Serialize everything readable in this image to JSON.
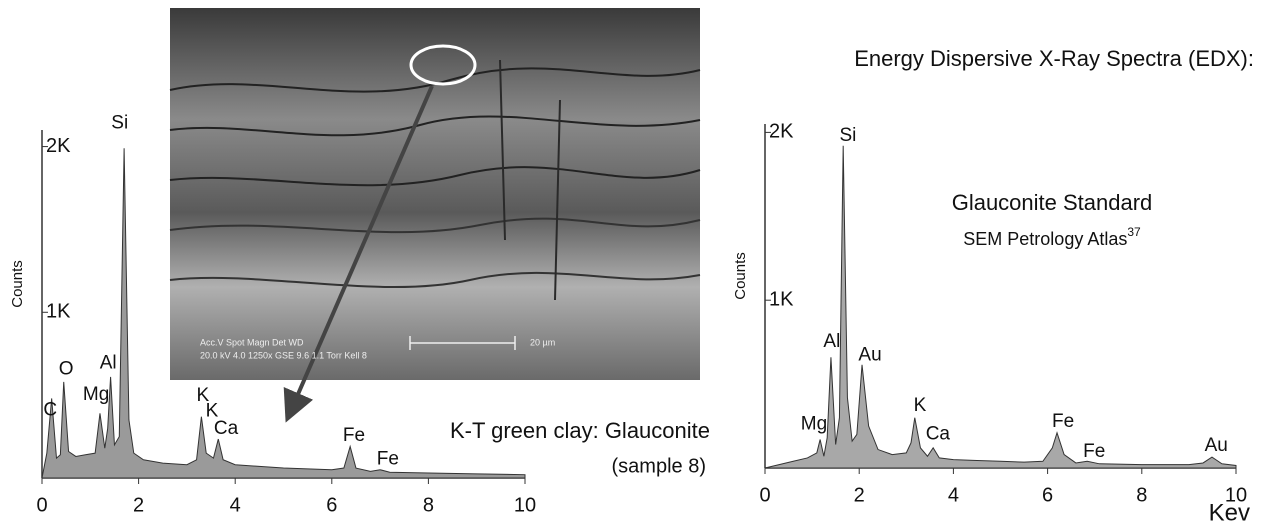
{
  "chart_data": [
    {
      "type": "area",
      "subtitle": "K-T green clay: Glauconite",
      "note": "(sample 8)",
      "ylabel": "Counts",
      "color": "#9a9a9a",
      "x": [
        0,
        0.1,
        0.2,
        0.3,
        0.38,
        0.45,
        0.55,
        0.7,
        0.9,
        1.1,
        1.2,
        1.3,
        1.36,
        1.42,
        1.5,
        1.6,
        1.7,
        1.8,
        1.9,
        2.1,
        2.5,
        3.0,
        3.2,
        3.3,
        3.4,
        3.55,
        3.65,
        3.75,
        4.0,
        4.5,
        5.0,
        5.5,
        6.0,
        6.25,
        6.38,
        6.5,
        6.8,
        7.0,
        7.2,
        8.0,
        9.0,
        10.0
      ],
      "values": [
        0,
        150,
        480,
        120,
        140,
        580,
        160,
        130,
        140,
        150,
        390,
        180,
        300,
        610,
        200,
        250,
        1990,
        350,
        150,
        110,
        90,
        80,
        110,
        370,
        150,
        120,
        235,
        110,
        80,
        70,
        60,
        55,
        50,
        60,
        190,
        60,
        40,
        50,
        35,
        30,
        25,
        20
      ],
      "peaks": [
        {
          "label": "C",
          "x": 0.17,
          "y": 408
        },
        {
          "label": "O",
          "x": 0.5,
          "y": 655
        },
        {
          "label": "Mg",
          "x": 1.12,
          "y": 500
        },
        {
          "label": "Al",
          "x": 1.37,
          "y": 690
        },
        {
          "label": "Si",
          "x": 1.61,
          "y": 2140
        },
        {
          "label": "K",
          "x": 3.33,
          "y": 495
        },
        {
          "label": "K",
          "x": 3.52,
          "y": 400
        },
        {
          "label": "Ca",
          "x": 3.81,
          "y": 296
        },
        {
          "label": "Fe",
          "x": 6.46,
          "y": 253
        },
        {
          "label": "Fe",
          "x": 7.16,
          "y": 111
        }
      ],
      "xlim": [
        0,
        10
      ],
      "xticks": [
        0,
        2,
        4,
        6,
        8,
        10
      ],
      "ylim": [
        0,
        2100
      ],
      "yticks": [
        {
          "value": 1000,
          "label": "1K"
        },
        {
          "value": 2000,
          "label": "2K"
        }
      ]
    },
    {
      "type": "area",
      "title": "Energy Dispersive X-Ray Spectra (EDX):",
      "subtitle": "Glauconite Standard",
      "source": "SEM Petrology Atlas",
      "source_ref": "37",
      "xlabel": "Kev",
      "ylabel": "Counts",
      "color": "#a8a8a8",
      "x": [
        0,
        0.3,
        0.6,
        0.9,
        1.1,
        1.17,
        1.25,
        1.32,
        1.4,
        1.5,
        1.58,
        1.66,
        1.75,
        1.85,
        1.95,
        2.06,
        2.2,
        2.4,
        2.7,
        3.0,
        3.1,
        3.18,
        3.3,
        3.45,
        3.57,
        3.7,
        4.0,
        4.5,
        5.0,
        5.5,
        5.9,
        6.1,
        6.2,
        6.35,
        6.6,
        6.84,
        7.1,
        8.0,
        9.0,
        9.3,
        9.49,
        9.7,
        10.0
      ],
      "values": [
        0,
        20,
        40,
        60,
        90,
        170,
        70,
        180,
        660,
        140,
        300,
        1920,
        420,
        160,
        200,
        615,
        250,
        110,
        80,
        90,
        150,
        300,
        120,
        70,
        120,
        60,
        50,
        45,
        40,
        35,
        40,
        120,
        210,
        80,
        30,
        40,
        25,
        20,
        20,
        30,
        65,
        25,
        15
      ],
      "peaks": [
        {
          "label": "Mg",
          "x": 1.04,
          "y": 260
        },
        {
          "label": "Al",
          "x": 1.42,
          "y": 750
        },
        {
          "label": "Si",
          "x": 1.76,
          "y": 1980
        },
        {
          "label": "Au",
          "x": 2.23,
          "y": 670
        },
        {
          "label": "K",
          "x": 3.29,
          "y": 370
        },
        {
          "label": "Ca",
          "x": 3.67,
          "y": 200
        },
        {
          "label": "Fe",
          "x": 6.33,
          "y": 275
        },
        {
          "label": "Fe",
          "x": 6.99,
          "y": 96
        },
        {
          "label": "Au",
          "x": 9.58,
          "y": 130
        }
      ],
      "xlim": [
        0,
        10
      ],
      "xticks": [
        0,
        2,
        4,
        6,
        8,
        10
      ],
      "ylim": [
        0,
        2050
      ],
      "yticks": [
        {
          "value": 1000,
          "label": "1K"
        },
        {
          "value": 2000,
          "label": "2K"
        }
      ]
    }
  ],
  "image": {
    "info_top": "Acc.V  Spot  Magn     Det   WD",
    "info_bottom": "20.0 kV  4.0  1250x    GSE  9.6   1.1 Torr Kell 8",
    "scale_label": "20 µm"
  }
}
